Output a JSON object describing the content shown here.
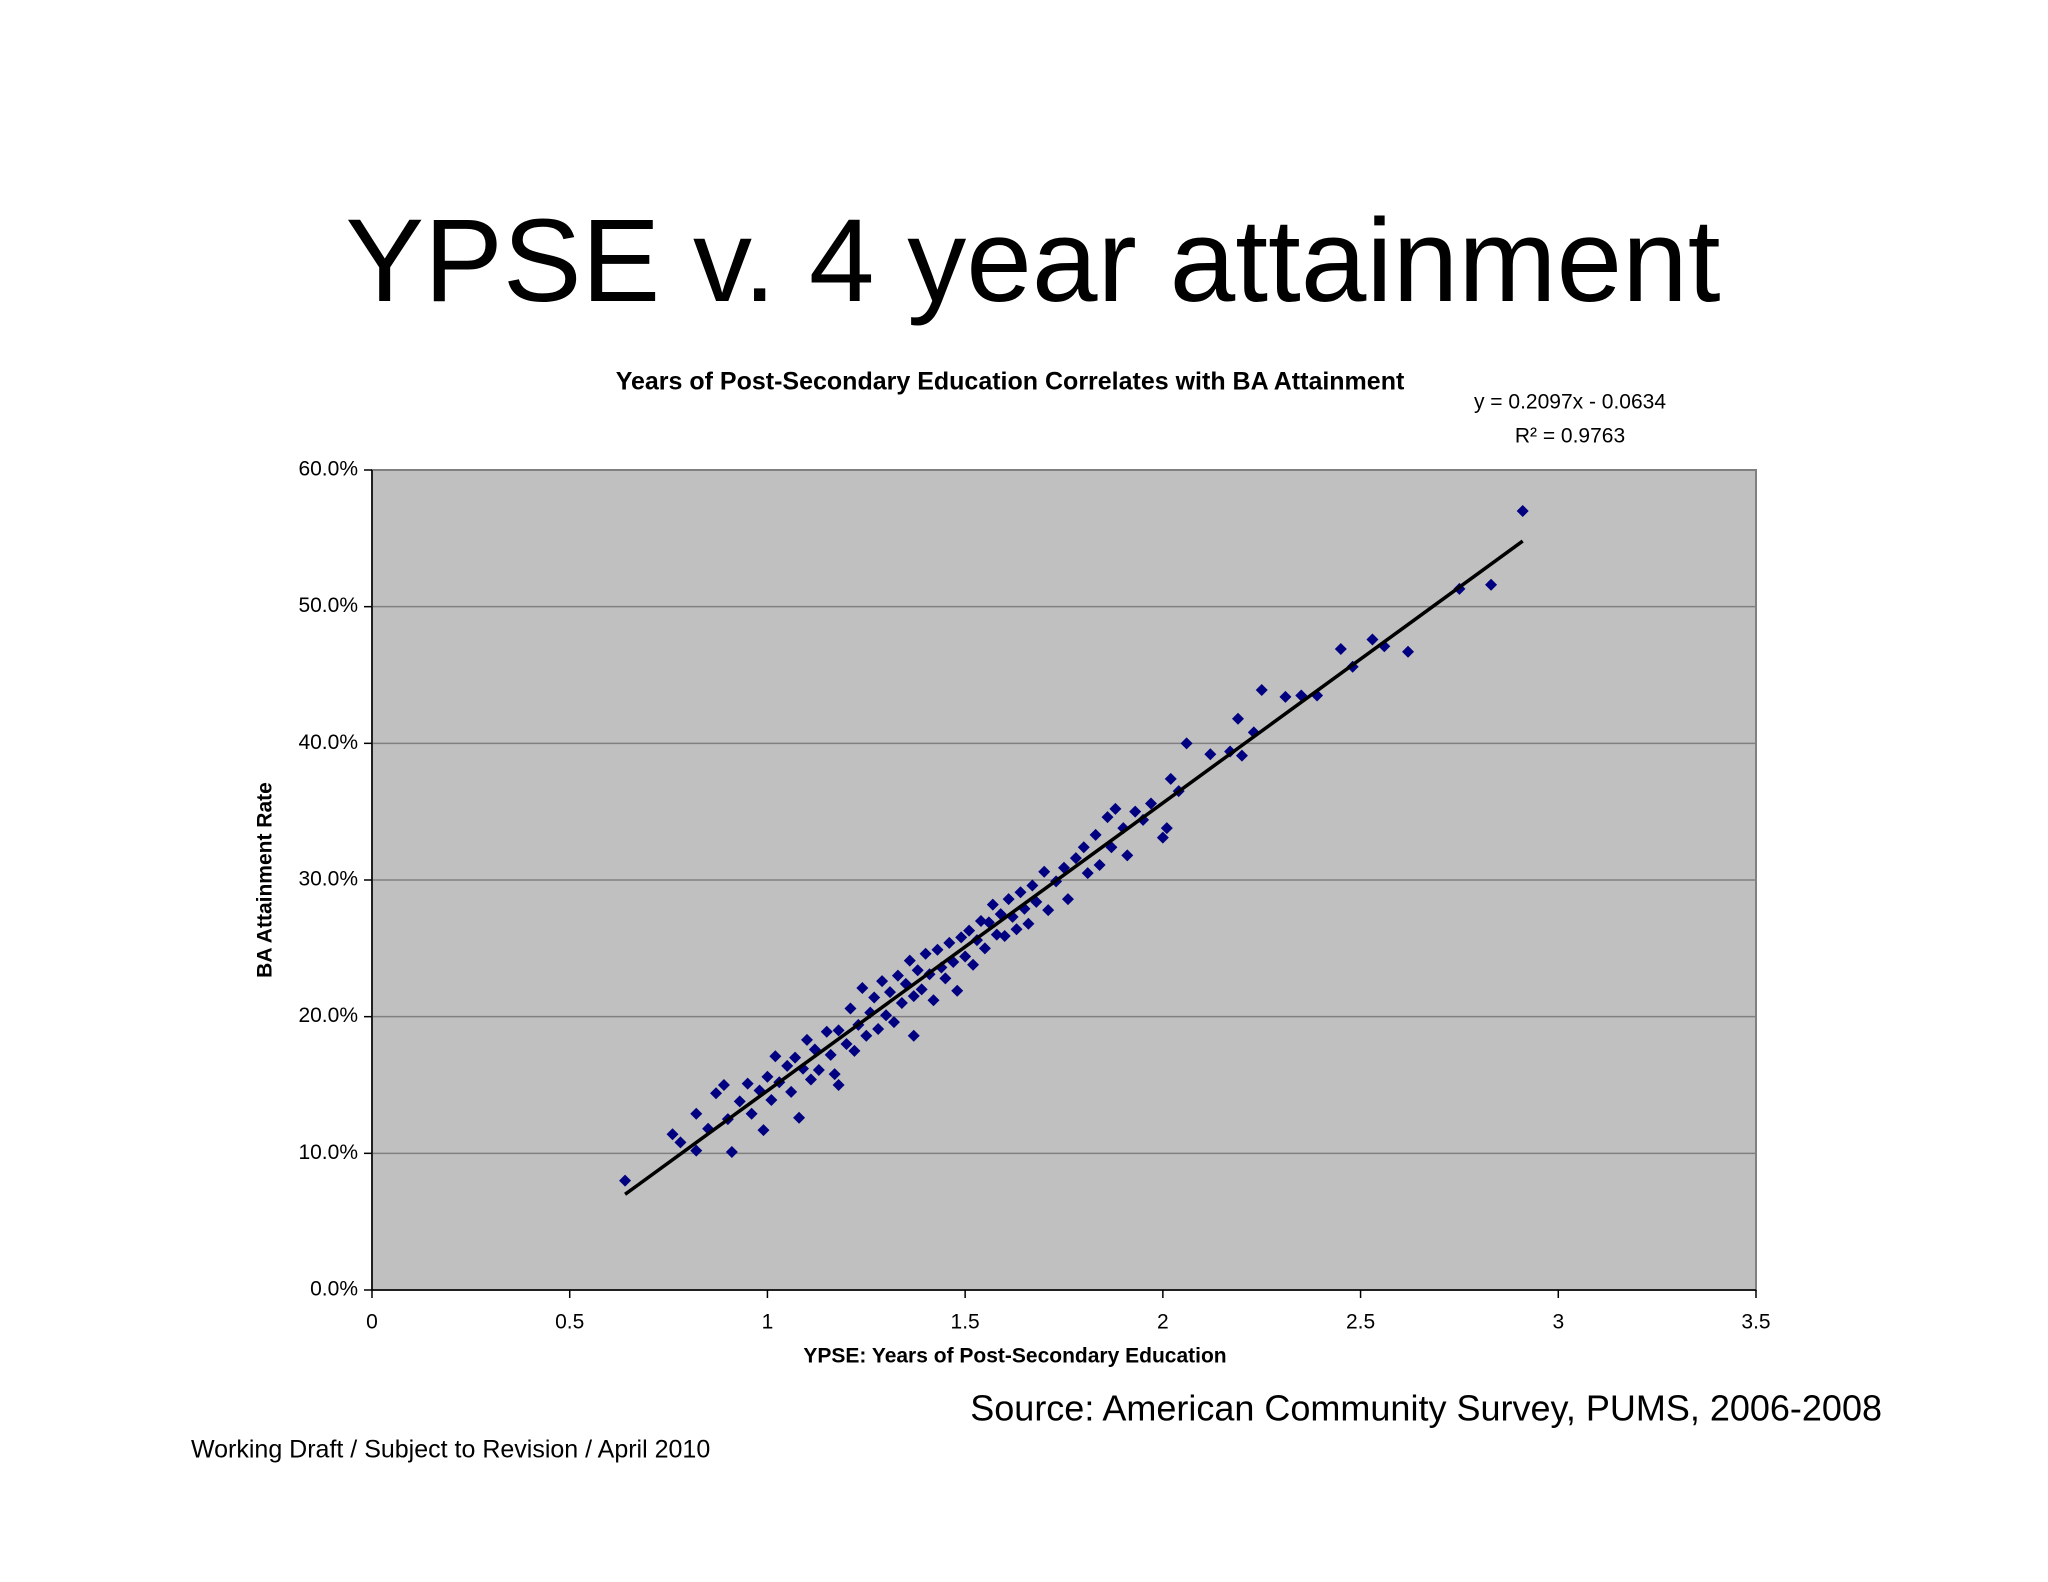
{
  "chart_data": {
    "type": "scatter",
    "slide_title": "YPSE v. 4 year attainment",
    "title": "Years of Post-Secondary Education Correlates with BA Attainment",
    "equation": "y = 0.2097x - 0.0634",
    "r_squared": "R² = 0.9763",
    "xlabel": "YPSE:  Years of Post-Secondary Education",
    "ylabel": "BA Attainment Rate",
    "source": "Source: American Community Survey, PUMS, 2006-2008",
    "footer": "Working Draft / Subject to Revision / April 2010",
    "color": "#000080",
    "trendline_color": "#000000",
    "plot_background": "#c0c0c0",
    "grid": true,
    "xlim": [
      0,
      3.5
    ],
    "xticks": [
      0,
      0.5,
      1,
      1.5,
      2,
      2.5,
      3,
      3.5
    ],
    "ylim": [
      0,
      60
    ],
    "yticks": [
      {
        "value": 0,
        "label": "0.0%"
      },
      {
        "value": 10,
        "label": "10.0%"
      },
      {
        "value": 20,
        "label": "20.0%"
      },
      {
        "value": 30,
        "label": "30.0%"
      },
      {
        "value": 40,
        "label": "40.0%"
      },
      {
        "value": 50,
        "label": "50.0%"
      },
      {
        "value": 60,
        "label": "60.0%"
      }
    ],
    "x": [
      0.64,
      2.91,
      2.83,
      2.75,
      2.62,
      2.56,
      2.53,
      2.48,
      2.45,
      2.39,
      2.35,
      2.31,
      2.25,
      2.23,
      2.2,
      2.19,
      2.17,
      2.12,
      2.06,
      2.04,
      2.01,
      2.0,
      2.02,
      0.91,
      0.99,
      0.82,
      0.76,
      1.08,
      1.37,
      1.18,
      0.78,
      0.82,
      0.85,
      0.87,
      0.89,
      0.9,
      0.93,
      0.95,
      0.96,
      0.98,
      1.0,
      1.01,
      1.02,
      1.03,
      1.05,
      1.06,
      1.07,
      1.09,
      1.1,
      1.11,
      1.12,
      1.13,
      1.15,
      1.16,
      1.17,
      1.18,
      1.2,
      1.21,
      1.22,
      1.23,
      1.24,
      1.25,
      1.26,
      1.27,
      1.28,
      1.29,
      1.3,
      1.31,
      1.32,
      1.33,
      1.34,
      1.35,
      1.36,
      1.37,
      1.38,
      1.39,
      1.4,
      1.41,
      1.42,
      1.43,
      1.44,
      1.45,
      1.46,
      1.47,
      1.48,
      1.49,
      1.5,
      1.51,
      1.52,
      1.53,
      1.54,
      1.55,
      1.56,
      1.57,
      1.58,
      1.59,
      1.6,
      1.61,
      1.62,
      1.63,
      1.64,
      1.65,
      1.66,
      1.67,
      1.68,
      1.7,
      1.71,
      1.73,
      1.75,
      1.76,
      1.78,
      1.8,
      1.81,
      1.83,
      1.84,
      1.86,
      1.87,
      1.88,
      1.9,
      1.91,
      1.93,
      1.95,
      1.97
    ],
    "values": [
      8.0,
      57.0,
      51.6,
      51.3,
      46.7,
      47.1,
      47.6,
      45.6,
      46.9,
      43.5,
      43.5,
      43.4,
      43.9,
      40.8,
      39.1,
      41.8,
      39.4,
      39.2,
      40.0,
      36.5,
      33.8,
      33.1,
      37.4,
      10.1,
      11.7,
      10.2,
      11.4,
      12.6,
      18.6,
      15.0,
      10.8,
      12.9,
      11.8,
      14.4,
      15.0,
      12.5,
      13.8,
      15.1,
      12.9,
      14.6,
      15.6,
      13.9,
      17.1,
      15.2,
      16.4,
      14.5,
      17.0,
      16.2,
      18.3,
      15.4,
      17.6,
      16.1,
      18.9,
      17.2,
      15.8,
      19.0,
      18.0,
      20.6,
      17.5,
      19.4,
      22.1,
      18.6,
      20.3,
      21.4,
      19.1,
      22.6,
      20.1,
      21.8,
      19.6,
      23.0,
      21.0,
      22.4,
      24.1,
      21.5,
      23.4,
      22.0,
      24.6,
      23.1,
      21.2,
      24.9,
      23.6,
      22.8,
      25.4,
      24.0,
      21.9,
      25.8,
      24.4,
      26.3,
      23.8,
      25.6,
      27.0,
      25.0,
      26.9,
      28.2,
      26.0,
      27.5,
      25.9,
      28.6,
      27.3,
      26.4,
      29.1,
      27.9,
      26.8,
      29.6,
      28.4,
      30.6,
      27.8,
      29.9,
      30.9,
      28.6,
      31.6,
      32.4,
      30.5,
      33.3,
      31.1,
      34.6,
      32.4,
      35.2,
      33.8,
      31.8,
      35.0,
      34.4,
      35.6
    ],
    "trendline": {
      "x": [
        0.64,
        2.91
      ],
      "y": [
        7.0,
        54.8
      ]
    }
  }
}
